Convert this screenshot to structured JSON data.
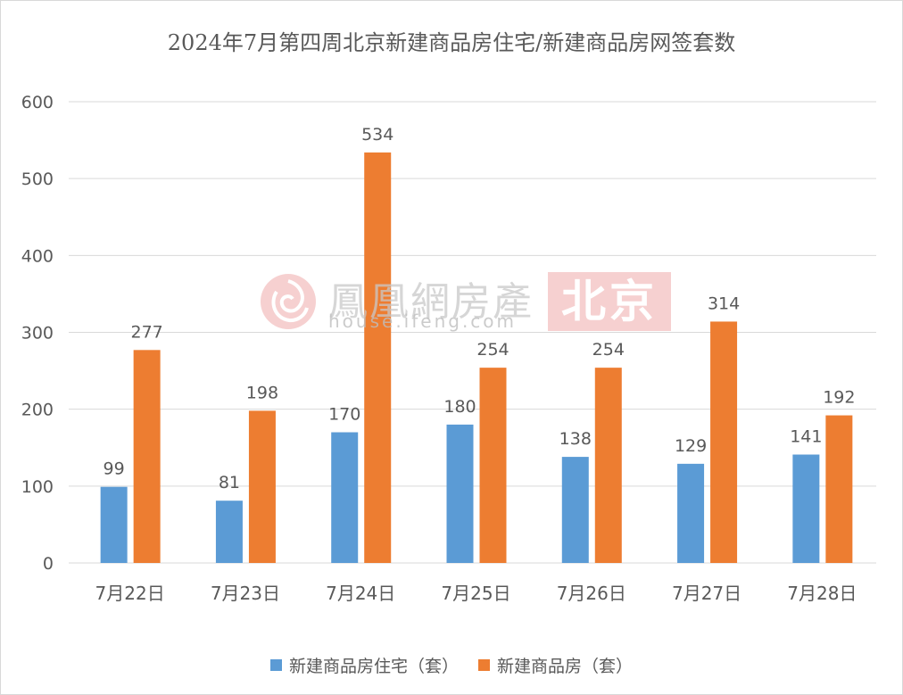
{
  "colors": {
    "series1": "#5b9bd5",
    "series2": "#ed7d31",
    "grid": "#d9d9d9",
    "text": "#595959"
  },
  "watermark": {
    "brand": "鳳凰網房產",
    "url": "house.ifeng.com",
    "city": "北京",
    "logo_icon": "ifeng-phoenix-logo-icon"
  },
  "chart_data": {
    "type": "bar",
    "title": "2024年7月第四周北京新建商品房住宅/新建商品房网签套数",
    "xlabel": "",
    "ylabel": "",
    "categories": [
      "7月22日",
      "7月23日",
      "7月24日",
      "7月25日",
      "7月26日",
      "7月27日",
      "7月28日"
    ],
    "series": [
      {
        "name": "新建商品房住宅（套）",
        "values": [
          99,
          81,
          170,
          180,
          138,
          129,
          141
        ]
      },
      {
        "name": "新建商品房（套）",
        "values": [
          277,
          198,
          534,
          254,
          254,
          314,
          192
        ]
      }
    ],
    "ylim": [
      0,
      600
    ],
    "yticks": [
      0,
      100,
      200,
      300,
      400,
      500,
      600
    ],
    "grid": true,
    "legend_position": "bottom"
  }
}
